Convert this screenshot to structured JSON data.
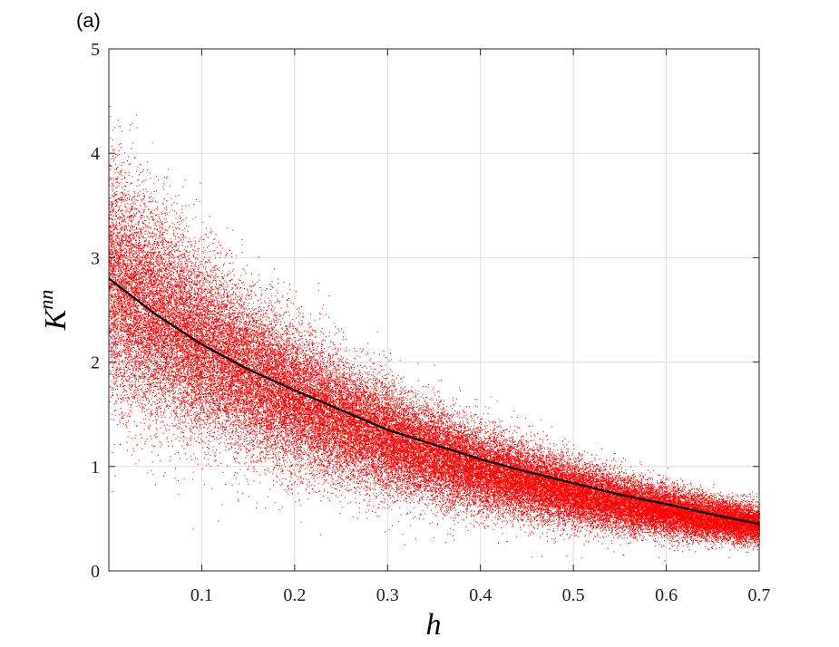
{
  "panel_label": "(a)",
  "chart_data": {
    "type": "scatter",
    "xlabel": "h",
    "ylabel_main": "K",
    "ylabel_sup": "nn",
    "xlim": [
      0,
      0.7
    ],
    "ylim": [
      0,
      5
    ],
    "x_ticks": [
      "0.1",
      "0.2",
      "0.3",
      "0.4",
      "0.5",
      "0.6",
      "0.7"
    ],
    "y_ticks": [
      "0",
      "1",
      "2",
      "3",
      "4",
      "5"
    ],
    "grid": true,
    "scatter": {
      "color": "#ff0000",
      "n_points": 60000,
      "trend": {
        "y_at_0": 2.8,
        "decay_rate": 2.63
      },
      "relative_spread_sd": 0.2
    },
    "series": [
      {
        "type": "line",
        "color": "#000000",
        "x": [
          0,
          0.05,
          0.1,
          0.15,
          0.2,
          0.25,
          0.3,
          0.35,
          0.4,
          0.45,
          0.5,
          0.55,
          0.6,
          0.65,
          0.7
        ],
        "y": [
          2.8,
          2.46,
          2.17,
          1.93,
          1.73,
          1.54,
          1.35,
          1.21,
          1.07,
          0.95,
          0.84,
          0.73,
          0.64,
          0.54,
          0.45
        ]
      }
    ]
  }
}
